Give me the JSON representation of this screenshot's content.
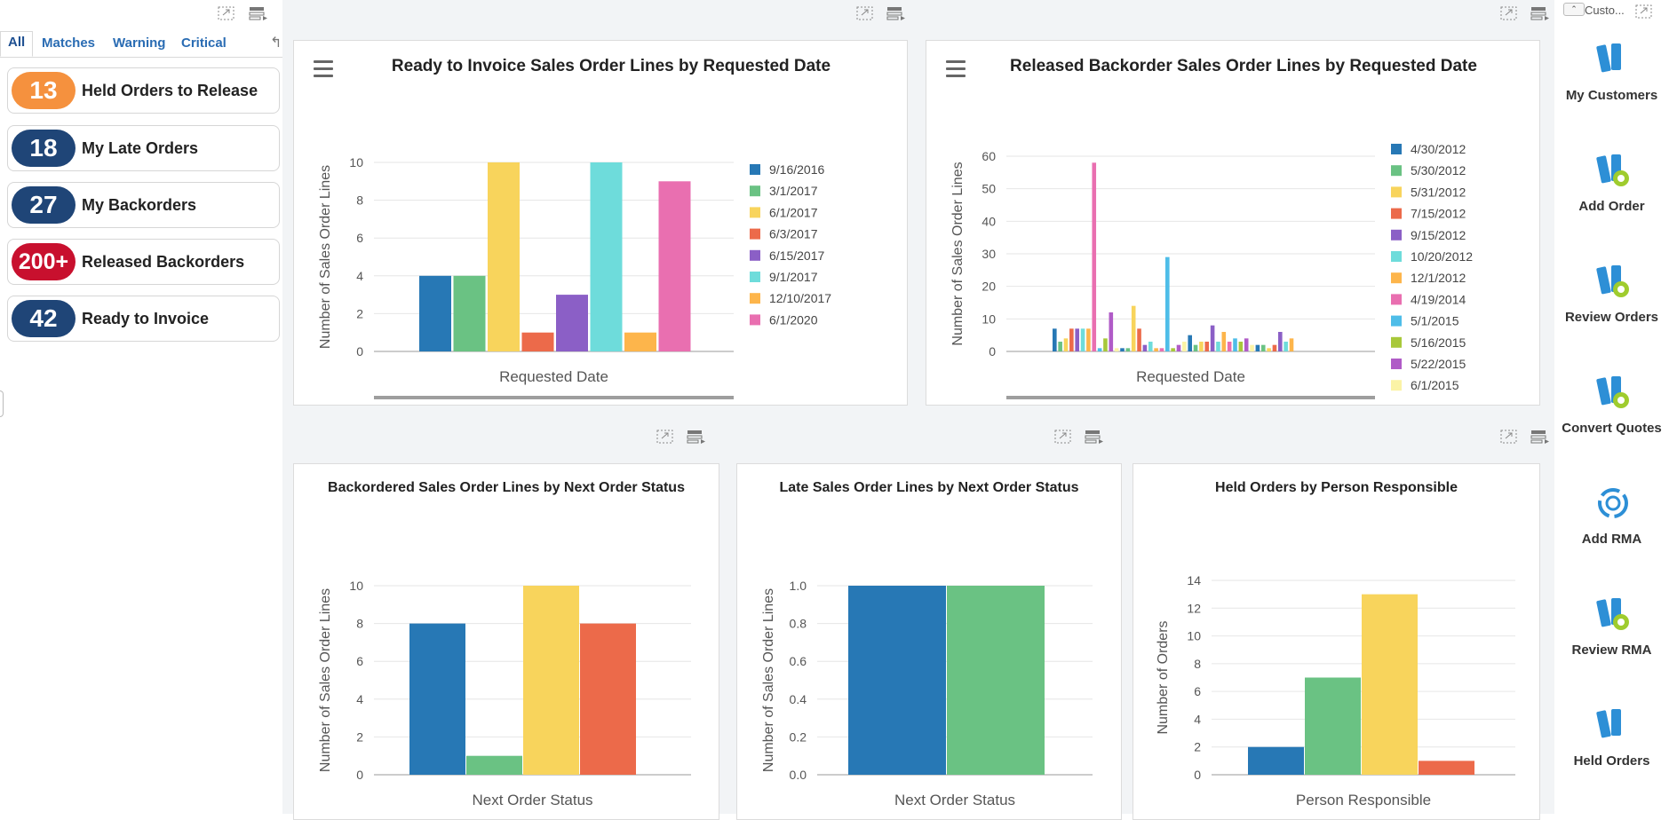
{
  "left_panel": {
    "tabs": [
      {
        "label": "All"
      },
      {
        "label": "Matches"
      },
      {
        "label": "Warning"
      },
      {
        "label": "Critical"
      }
    ],
    "kpis": [
      {
        "value": "13",
        "label": "Held Orders to Release",
        "color": "#f5913e"
      },
      {
        "value": "18",
        "label": "My Late Orders",
        "color": "#1f4577"
      },
      {
        "value": "27",
        "label": "My Backorders",
        "color": "#1f4577"
      },
      {
        "value": "200+",
        "label": "Released Backorders",
        "color": "#c8102e"
      },
      {
        "value": "42",
        "label": "Ready to Invoice",
        "color": "#1f4577"
      }
    ]
  },
  "right_rail": {
    "top_label": "Custo...",
    "items": [
      {
        "label": "My Customers",
        "icon": "customers-icon"
      },
      {
        "label": "Add Order",
        "icon": "add-order-icon"
      },
      {
        "label": "Review Orders",
        "icon": "review-orders-icon"
      },
      {
        "label": "Convert Quotes",
        "icon": "convert-quotes-icon"
      },
      {
        "label": "Add RMA",
        "icon": "add-rma-icon"
      },
      {
        "label": "Review RMA",
        "icon": "review-rma-icon"
      },
      {
        "label": "Held Orders",
        "icon": "held-orders-icon"
      }
    ]
  },
  "chart_data": [
    {
      "id": "ready_to_invoice",
      "type": "bar",
      "title": "Ready to Invoice Sales Order Lines by Requested Date",
      "xlabel": "Requested Date",
      "ylabel": "Number of Sales Order Lines",
      "ylim": [
        0,
        10
      ],
      "yticks": [
        0,
        2,
        4,
        6,
        8,
        10
      ],
      "legend": "right",
      "series": [
        {
          "name": "9/16/2016",
          "value": 4,
          "color": "#2778b5"
        },
        {
          "name": "3/1/2017",
          "value": 4,
          "color": "#6ac283"
        },
        {
          "name": "6/1/2017",
          "value": 10,
          "color": "#f8d45c"
        },
        {
          "name": "6/3/2017",
          "value": 1,
          "color": "#ec6a4a"
        },
        {
          "name": "6/15/2017",
          "value": 3,
          "color": "#8b5fc6"
        },
        {
          "name": "9/1/2017",
          "value": 10,
          "color": "#6edcdb"
        },
        {
          "name": "12/10/2017",
          "value": 1,
          "color": "#fdb54b"
        },
        {
          "name": "6/1/2020",
          "value": 9,
          "color": "#e96fb0"
        }
      ]
    },
    {
      "id": "released_backorder",
      "type": "bar",
      "title": "Released Backorder Sales Order Lines by Requested Date",
      "xlabel": "Requested Date",
      "ylabel": "Number of Sales Order Lines",
      "ylim": [
        0,
        60
      ],
      "yticks": [
        0,
        10,
        20,
        30,
        40,
        50,
        60
      ],
      "legend": "right",
      "legend_entries": [
        {
          "name": "4/30/2012",
          "color": "#2778b5"
        },
        {
          "name": "5/30/2012",
          "color": "#6ac283"
        },
        {
          "name": "5/31/2012",
          "color": "#f8d45c"
        },
        {
          "name": "7/15/2012",
          "color": "#ec6a4a"
        },
        {
          "name": "9/15/2012",
          "color": "#8b5fc6"
        },
        {
          "name": "10/20/2012",
          "color": "#6edcdb"
        },
        {
          "name": "12/1/2012",
          "color": "#fdb54b"
        },
        {
          "name": "4/19/2014",
          "color": "#e96fb0"
        },
        {
          "name": "5/1/2015",
          "color": "#4ebde8"
        },
        {
          "name": "5/16/2015",
          "color": "#a8c83a"
        },
        {
          "name": "5/22/2015",
          "color": "#b05bc7"
        },
        {
          "name": "6/1/2015",
          "color": "#fbf3a6"
        }
      ],
      "palette": [
        "#2778b5",
        "#6ac283",
        "#f8d45c",
        "#ec6a4a",
        "#8b5fc6",
        "#6edcdb",
        "#fdb54b",
        "#e96fb0",
        "#4ebde8",
        "#a8c83a",
        "#b05bc7",
        "#fbf3a6"
      ],
      "values": [
        7,
        3,
        4,
        7,
        7,
        7,
        7,
        58,
        1,
        4,
        12,
        1,
        1,
        1,
        14,
        7,
        2,
        3,
        1,
        1,
        29,
        1,
        2,
        3,
        5,
        2,
        3,
        3,
        8,
        3,
        6,
        3,
        4,
        3,
        4,
        2,
        2,
        2,
        1,
        2,
        6,
        3,
        4
      ]
    },
    {
      "id": "backordered_next_status",
      "type": "bar",
      "title": "Backordered Sales Order Lines by Next Order Status",
      "xlabel": "Next Order Status",
      "ylabel": "Number of Sales Order Lines",
      "ylim": [
        0,
        10
      ],
      "yticks": [
        0,
        2,
        4,
        6,
        8,
        10
      ],
      "values": [
        8,
        1,
        10,
        8
      ],
      "colors": [
        "#2778b5",
        "#6ac283",
        "#f8d45c",
        "#ec6a4a"
      ]
    },
    {
      "id": "late_next_status",
      "type": "bar",
      "title": "Late Sales Order Lines by Next Order Status",
      "xlabel": "Next Order Status",
      "ylabel": "Number of Sales Order Lines",
      "ylim": [
        0,
        1.0
      ],
      "yticks": [
        "0.0",
        "0.2",
        "0.4",
        "0.6",
        "0.8",
        "1.0"
      ],
      "values": [
        1,
        1
      ],
      "colors": [
        "#2778b5",
        "#6ac283"
      ]
    },
    {
      "id": "held_by_person",
      "type": "bar",
      "title": "Held Orders by Person Responsible",
      "xlabel": "Person Responsible",
      "ylabel": "Number of Orders",
      "ylim": [
        0,
        14
      ],
      "yticks": [
        0,
        2,
        4,
        6,
        8,
        10,
        12,
        14
      ],
      "values": [
        2,
        7,
        13,
        1
      ],
      "colors": [
        "#2778b5",
        "#6ac283",
        "#f8d45c",
        "#ec6a4a"
      ]
    }
  ]
}
